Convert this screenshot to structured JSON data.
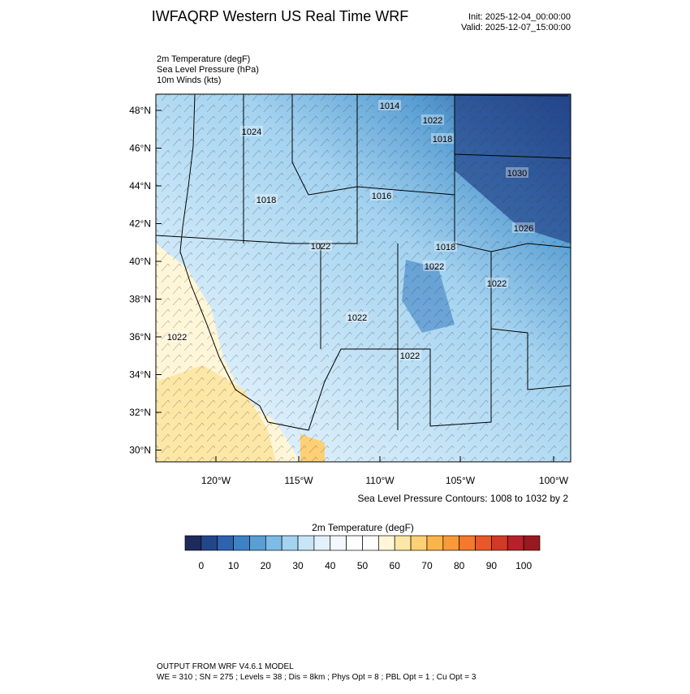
{
  "header": {
    "title": "IWFAQRP Western US Real Time WRF",
    "init": "Init: 2025-12-04_00:00:00",
    "valid": "Valid: 2025-12-07_15:00:00"
  },
  "fields": [
    "2m Temperature   (degF)",
    "Sea Level Pressure   (hPa)",
    "10m Winds   (kts)"
  ],
  "map": {
    "lat_labels": [
      "48°N",
      "46°N",
      "44°N",
      "42°N",
      "40°N",
      "38°N",
      "36°N",
      "34°N",
      "32°N",
      "30°N"
    ],
    "lon_labels": [
      "120°W",
      "115°W",
      "110°W",
      "105°W",
      "100°W"
    ],
    "contour_labels": [
      "1014",
      "1022",
      "1018",
      "1024",
      "1030",
      "1018",
      "1016",
      "1026",
      "1022",
      "1018",
      "1022",
      "1022",
      "1022",
      "1022",
      "1022"
    ],
    "contour_note": "Sea Level Pressure Contours: 1008 to 1032 by 2"
  },
  "colorbar": {
    "title": "2m Temperature  (degF)",
    "colors": [
      "#1c2a5c",
      "#23458a",
      "#2f63ad",
      "#3f82c4",
      "#5a9fd4",
      "#7dbce6",
      "#a4d3f0",
      "#c7e5f7",
      "#e2f1fb",
      "#f2f8fd",
      "#ffffff",
      "#ffffff",
      "#fff6d8",
      "#fde7a6",
      "#fdd075",
      "#fbb44b",
      "#f89a3a",
      "#f37a2d",
      "#e8582a",
      "#d23a27",
      "#b8212a",
      "#981a20"
    ],
    "ticks": [
      0,
      10,
      20,
      30,
      40,
      50,
      60,
      70,
      80,
      90,
      100
    ]
  },
  "footer": [
    "OUTPUT FROM WRF V4.6.1 MODEL",
    "WE = 310 ; SN = 275 ; Levels = 38 ; Dis = 8km ; Phys Opt = 8 ; PBL Opt = 1 ; Cu Opt = 3"
  ]
}
